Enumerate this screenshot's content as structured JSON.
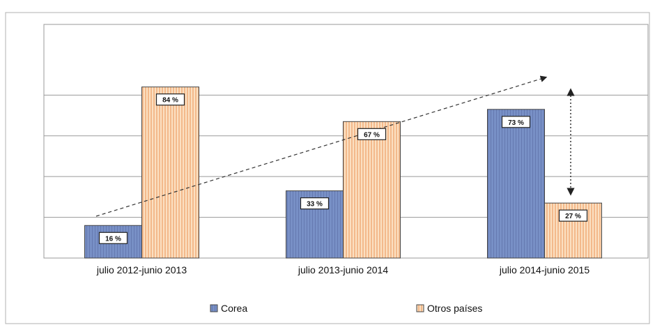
{
  "chart_data": {
    "type": "bar",
    "title": "",
    "xlabel": "",
    "ylabel": "",
    "ylim": [
      0,
      100
    ],
    "grid": true,
    "legend_position": "bottom",
    "categories": [
      "julio 2012-junio 2013",
      "julio 2013-junio 2014",
      "julio 2014-junio 2015"
    ],
    "series": [
      {
        "name": "Corea",
        "values": [
          16,
          33,
          73
        ],
        "labels": [
          "16 %",
          "33 %",
          "73 %"
        ],
        "color": "#6f86bf"
      },
      {
        "name": "Otros países",
        "values": [
          84,
          67,
          27
        ],
        "labels": [
          "84 %",
          "67 %",
          "27 %"
        ],
        "color": "#f8cfa6"
      }
    ],
    "annotations": [
      "dashed-trend-arrow",
      "double-headed-dotted-arrow"
    ]
  }
}
